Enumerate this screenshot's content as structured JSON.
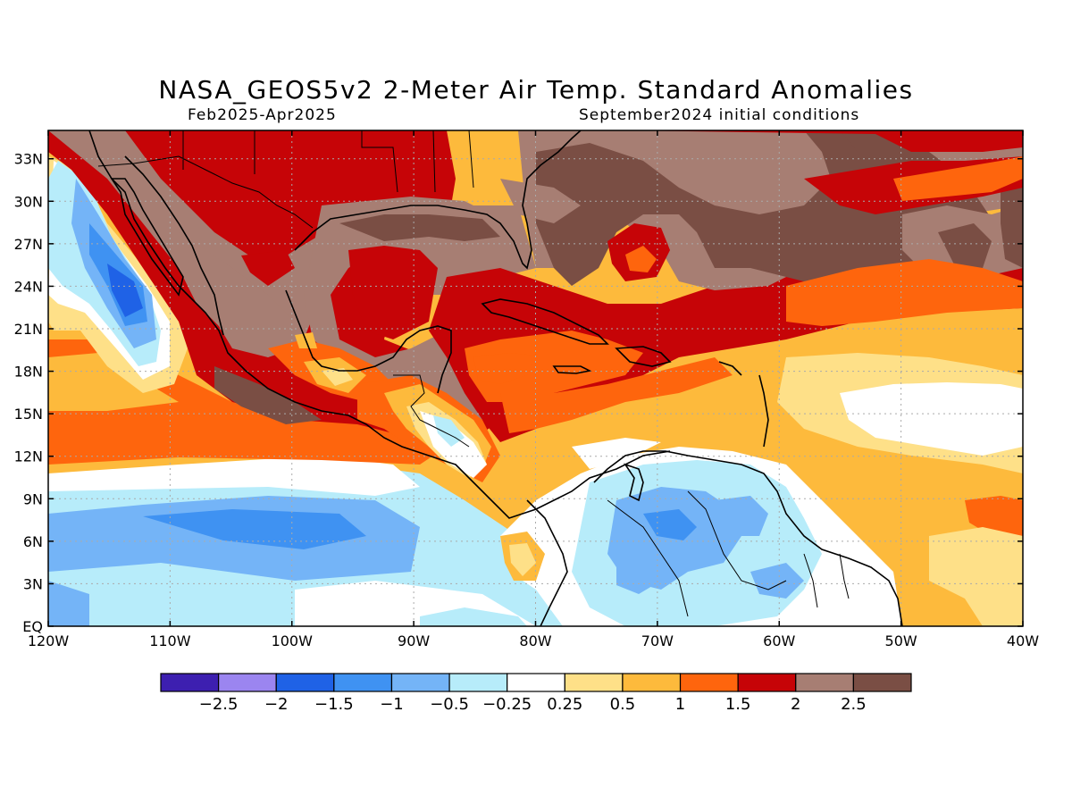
{
  "title": "NASA_GEOS5v2 2-Meter Air Temp. Standard Anomalies",
  "subtitle_left": "Feb2025-Apr2025",
  "subtitle_right": "September2024 initial conditions",
  "lat_labels": [
    "33N",
    "30N",
    "27N",
    "24N",
    "21N",
    "18N",
    "15N",
    "12N",
    "9N",
    "6N",
    "3N",
    "EQ"
  ],
  "lon_labels": [
    "120W",
    "110W",
    "100W",
    "90W",
    "80W",
    "70W",
    "60W",
    "50W",
    "40W"
  ],
  "colorbar": {
    "colors": [
      "#3d1fb0",
      "#9b85f0",
      "#1f62e6",
      "#3f92f2",
      "#74b4f7",
      "#b7ecfa",
      "#ffffff",
      "#fee088",
      "#fdba3c",
      "#fe650d",
      "#c60407",
      "#a77e73",
      "#7a4e44"
    ],
    "labels": [
      "-2.5",
      "-2",
      "-1.5",
      "-1",
      "-0.5",
      "-0.25",
      "0.25",
      "0.5",
      "1",
      "1.5",
      "2",
      "2.5"
    ]
  },
  "colors": {
    "warm_strong": "#7a4e44",
    "warm": "#a77e73",
    "red": "#c60407",
    "orange": "#fe650d",
    "light_orange": "#fdba3c",
    "yellow": "#fee088",
    "neutral": "#ffffff",
    "light_blue": "#b7ecfa",
    "blue": "#74b4f7",
    "mid_blue": "#3f92f2",
    "dark_blue": "#1f62e6"
  }
}
